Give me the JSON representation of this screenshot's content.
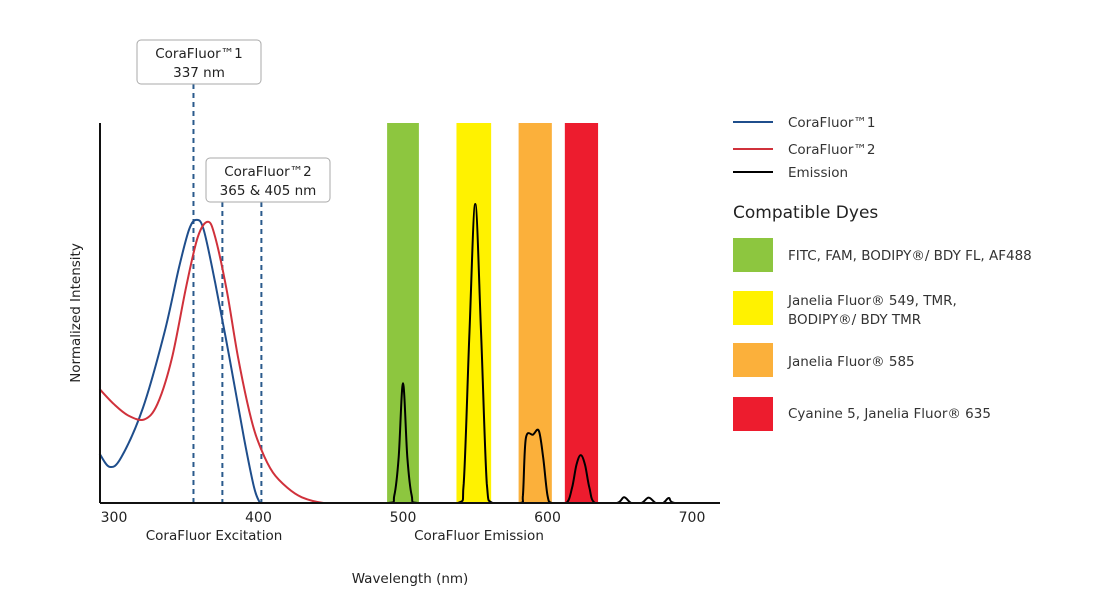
{
  "chart_data": {
    "type": "line",
    "xlabel": "Wavelength (nm)",
    "ylabel": "Normalized Intensity",
    "sublabels": [
      "CoraFluor Excitation",
      "CoraFluor Emission"
    ],
    "xlim": [
      290,
      719
    ],
    "ylim": [
      0,
      1
    ],
    "x_ticks": [
      300,
      400,
      500,
      600,
      700
    ],
    "grid": false,
    "legend_position": "right",
    "series": [
      {
        "name": "CoraFluor™1",
        "color": "#1f4e8c",
        "points": [
          [
            290,
            0.13
          ],
          [
            297,
            0.095
          ],
          [
            305,
            0.12
          ],
          [
            320,
            0.25
          ],
          [
            335,
            0.45
          ],
          [
            345,
            0.62
          ],
          [
            352,
            0.72
          ],
          [
            357,
            0.745
          ],
          [
            362,
            0.72
          ],
          [
            370,
            0.58
          ],
          [
            380,
            0.38
          ],
          [
            390,
            0.17
          ],
          [
            397,
            0.04
          ],
          [
            401,
            0
          ]
        ]
      },
      {
        "name": "CoraFluor™2",
        "color": "#d0313b",
        "points": [
          [
            290,
            0.3
          ],
          [
            300,
            0.26
          ],
          [
            310,
            0.23
          ],
          [
            321,
            0.22
          ],
          [
            330,
            0.26
          ],
          [
            340,
            0.38
          ],
          [
            350,
            0.57
          ],
          [
            358,
            0.7
          ],
          [
            365,
            0.74
          ],
          [
            370,
            0.7
          ],
          [
            378,
            0.56
          ],
          [
            386,
            0.38
          ],
          [
            395,
            0.22
          ],
          [
            402,
            0.14
          ],
          [
            410,
            0.08
          ],
          [
            420,
            0.04
          ],
          [
            430,
            0.015
          ],
          [
            445,
            0.0
          ],
          [
            460,
            0
          ]
        ]
      },
      {
        "name": "Emission",
        "color": "#000000",
        "points": [
          [
            460,
            0
          ],
          [
            490,
            0
          ],
          [
            494,
            0.02
          ],
          [
            497,
            0.12
          ],
          [
            500,
            0.315
          ],
          [
            503,
            0.12
          ],
          [
            506,
            0.02
          ],
          [
            510,
            0
          ],
          [
            538,
            0
          ],
          [
            542,
            0.05
          ],
          [
            546,
            0.45
          ],
          [
            550,
            0.787
          ],
          [
            554,
            0.45
          ],
          [
            558,
            0.05
          ],
          [
            562,
            0
          ],
          [
            581,
            0
          ],
          [
            583,
            0.02
          ],
          [
            585,
            0.17
          ],
          [
            590,
            0.18
          ],
          [
            594,
            0.19
          ],
          [
            597,
            0.12
          ],
          [
            600,
            0.02
          ],
          [
            603,
            0
          ],
          [
            613,
            0
          ],
          [
            617,
            0.04
          ],
          [
            620,
            0.1
          ],
          [
            623,
            0.126
          ],
          [
            626,
            0.1
          ],
          [
            629,
            0.04
          ],
          [
            633,
            0
          ],
          [
            648,
            0
          ],
          [
            653,
            0.015
          ],
          [
            658,
            0
          ],
          [
            665,
            0
          ],
          [
            670,
            0.014
          ],
          [
            675,
            0
          ],
          [
            680,
            0
          ],
          [
            684,
            0.013
          ],
          [
            688,
            0
          ],
          [
            710,
            0
          ]
        ]
      }
    ],
    "excitation_lines": [
      355,
      375,
      402
    ],
    "callouts": [
      {
        "title": "CoraFluor™1",
        "value": "337 nm"
      },
      {
        "title": "CoraFluor™2",
        "value": "365 & 405 nm"
      }
    ],
    "dye_bands": [
      {
        "range": [
          489,
          511
        ],
        "color": "#8dc63f",
        "label": "FITC, FAM, BODIPY®/ BDY FL, AF488"
      },
      {
        "range": [
          537,
          561
        ],
        "color": "#fff200",
        "label": "Janelia Fluor® 549, TMR,",
        "label2": "BODIPY®/ BDY TMR"
      },
      {
        "range": [
          580,
          603
        ],
        "color": "#fbb03b",
        "label": "Janelia Fluor® 585"
      },
      {
        "range": [
          612,
          635
        ],
        "color": "#ed1c2e",
        "label": "Cyanine 5, Janelia Fluor® 635"
      }
    ],
    "dyes_title": "Compatible Dyes"
  }
}
